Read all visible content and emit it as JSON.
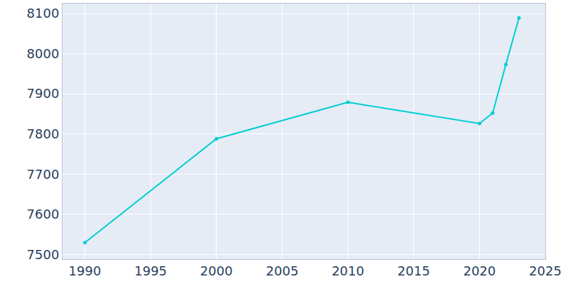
{
  "chart_data": {
    "type": "line",
    "x": [
      1990,
      2000,
      2010,
      2020,
      2021,
      2022,
      2023
    ],
    "values": [
      7529,
      7788,
      7879,
      7826,
      7852,
      7973,
      8089
    ],
    "color": "#00ced1",
    "marker": "circle",
    "xlim": [
      1988.3,
      2025
    ],
    "xticks": [
      1990,
      1995,
      2000,
      2005,
      2010,
      2015,
      2020,
      2025
    ],
    "ylim": [
      7488,
      8125
    ],
    "yticks": [
      7500,
      7600,
      7700,
      7800,
      7900,
      8000,
      8100
    ],
    "grid": true
  }
}
